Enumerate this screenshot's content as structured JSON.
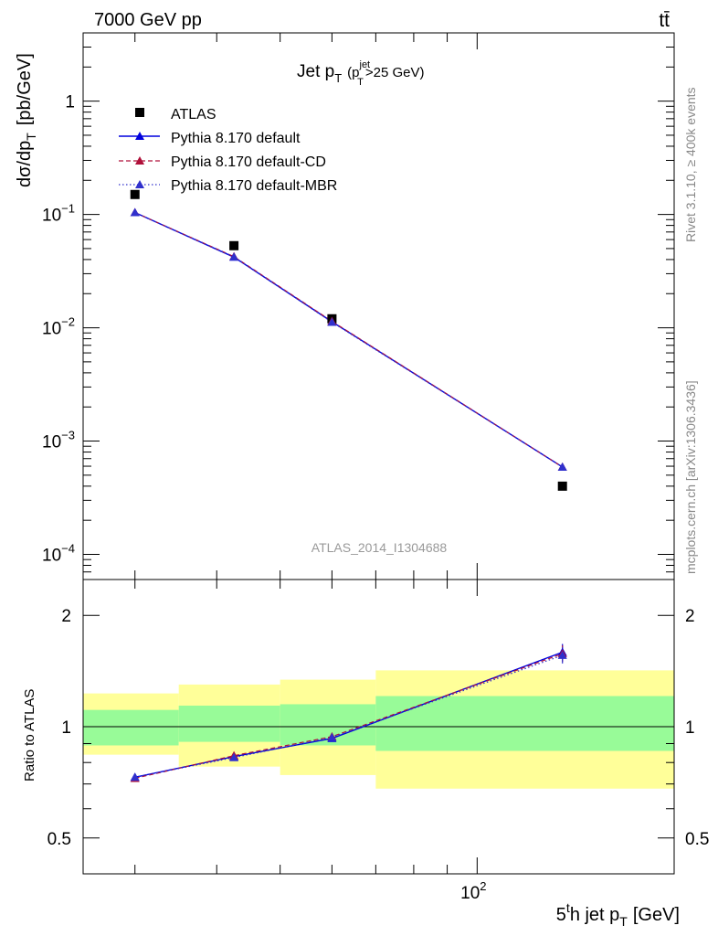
{
  "header": {
    "energy_label": "7000 GeV pp",
    "process_label": "tt̄"
  },
  "side_labels": {
    "rivet": "Rivet 3.1.10, ≥ 400k events",
    "mcplots": "mcplots.cern.ch [arXiv:1306.3436]"
  },
  "chart_data": [
    {
      "type": "scatter",
      "panel": "main",
      "title": "Jet p_T (p_T^jet>25 GeV)",
      "title_parts": {
        "main": "Jet p",
        "sub": "T",
        "cut_open": "(p",
        "cut_sub": "T",
        "cut_sup": "jet",
        "cut_close": ">25 GeV)"
      },
      "ylabel": "dσ/dp_T [pb/GeV]",
      "ylabel_parts": {
        "main": "dσ/dp",
        "sub": "T",
        "unit": "[pb/GeV]"
      },
      "xlabel": "5th jet p_T [GeV]",
      "xlabel_parts": {
        "a": "5",
        "sup": "t",
        "b": "h jet p",
        "sub": "T",
        "unit": "[GeV]"
      },
      "watermark": "ATLAS_2014_I1304688",
      "x_scale": "log",
      "y_scale": "log",
      "xlim": [
        25,
        200
      ],
      "ylim": [
        6e-05,
        4
      ],
      "x_tick_labels": [
        {
          "base": "10",
          "exp": "2"
        }
      ],
      "y_tick_labels": [
        {
          "base": "1",
          "exp": ""
        },
        {
          "base": "10",
          "exp": "−1"
        },
        {
          "base": "10",
          "exp": "−2"
        },
        {
          "base": "10",
          "exp": "−3"
        },
        {
          "base": "10",
          "exp": "−4"
        }
      ],
      "legend_position": "top-left",
      "series": [
        {
          "name": "ATLAS",
          "color": "#000000",
          "marker": "square",
          "x": [
            30,
            42.5,
            60,
            135
          ],
          "y": [
            0.15,
            0.053,
            0.012,
            0.0004
          ]
        },
        {
          "name": "Pythia 8.170 default",
          "color": "#0000dd",
          "marker": "triangle",
          "line": "solid",
          "x": [
            30,
            42.5,
            60,
            135
          ],
          "y": [
            0.104,
            0.042,
            0.0113,
            0.00059
          ]
        },
        {
          "name": "Pythia 8.170 default-CD",
          "color": "#b0103a",
          "marker": "triangle",
          "line": "dashed",
          "x": [
            30,
            42.5,
            60,
            135
          ],
          "y": [
            0.104,
            0.0425,
            0.0114,
            0.00059
          ]
        },
        {
          "name": "Pythia 8.170 default-MBR",
          "color": "#3030cc",
          "marker": "triangle",
          "line": "dotted",
          "x": [
            30,
            42.5,
            60,
            135
          ],
          "y": [
            0.104,
            0.0422,
            0.0112,
            0.00059
          ]
        }
      ]
    },
    {
      "type": "scatter",
      "panel": "ratio",
      "ylabel": "Ratio to ATLAS",
      "x_scale": "log",
      "y_scale": "log",
      "xlim": [
        25,
        200
      ],
      "ylim": [
        0.4,
        2.5
      ],
      "y_ticks": [
        0.5,
        1,
        2
      ],
      "y_tick_labels": [
        "0.5",
        "1",
        "2"
      ],
      "bands": [
        {
          "x": [
            25,
            35,
            50,
            70,
            200
          ],
          "lo_stat": [
            0.89,
            0.91,
            0.89,
            0.86
          ],
          "hi_stat": [
            1.11,
            1.14,
            1.15,
            1.21
          ],
          "lo_tot": [
            0.84,
            0.78,
            0.74,
            0.68
          ],
          "hi_tot": [
            1.23,
            1.3,
            1.34,
            1.42
          ]
        }
      ],
      "stat_band_color": "#98fb98",
      "total_band_color": "#ffff99",
      "series": [
        {
          "name": "Pythia 8.170 default",
          "x": [
            30,
            42.5,
            60,
            135
          ],
          "y": [
            0.73,
            0.83,
            0.93,
            1.59
          ]
        },
        {
          "name": "Pythia 8.170 default-CD",
          "x": [
            30,
            42.5,
            60,
            135
          ],
          "y": [
            0.725,
            0.835,
            0.94,
            1.575
          ]
        },
        {
          "name": "Pythia 8.170 default-MBR",
          "x": [
            30,
            42.5,
            60,
            135
          ],
          "y": [
            0.73,
            0.825,
            0.935,
            1.56
          ]
        }
      ]
    }
  ]
}
